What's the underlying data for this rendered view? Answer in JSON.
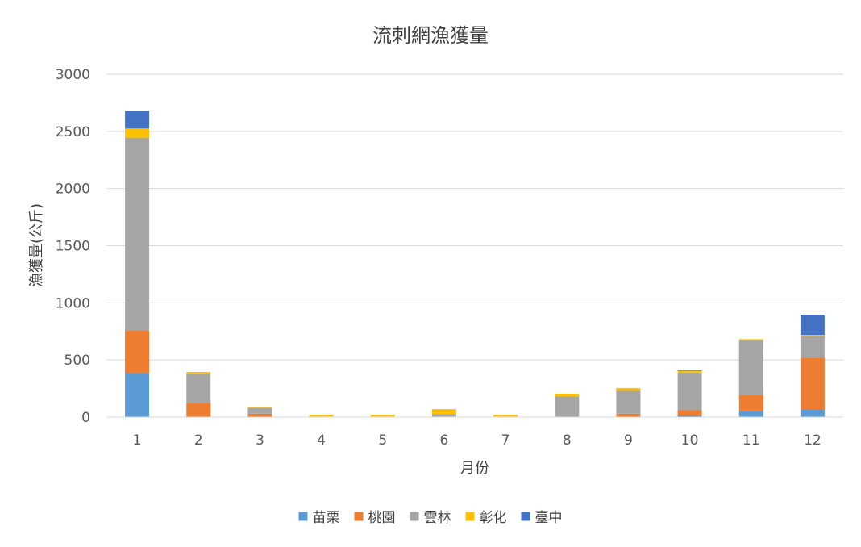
{
  "chart_data": {
    "type": "bar",
    "stacked": true,
    "title": "流刺網漁獲量",
    "xlabel": "月份",
    "ylabel": "漁獲量(公斤)",
    "ylim": [
      0,
      3000
    ],
    "yticks": [
      0,
      500,
      1000,
      1500,
      2000,
      2500,
      3000
    ],
    "grid": true,
    "legend_position": "bottom",
    "categories": [
      "1",
      "2",
      "3",
      "4",
      "5",
      "6",
      "7",
      "8",
      "9",
      "10",
      "11",
      "12"
    ],
    "series": [
      {
        "name": "苗栗",
        "color": "#5B9BD5",
        "values": [
          385,
          0,
          0,
          0,
          0,
          0,
          0,
          0,
          0,
          15,
          55,
          70
        ]
      },
      {
        "name": "桃園",
        "color": "#ED7D31",
        "values": [
          370,
          120,
          30,
          0,
          0,
          5,
          0,
          0,
          30,
          45,
          140,
          450
        ]
      },
      {
        "name": "雲林",
        "color": "#A5A5A5",
        "values": [
          1690,
          260,
          50,
          5,
          5,
          20,
          5,
          180,
          200,
          330,
          475,
          190
        ]
      },
      {
        "name": "彰化",
        "color": "#FFC000",
        "values": [
          80,
          15,
          10,
          15,
          15,
          45,
          15,
          25,
          25,
          15,
          12,
          10
        ]
      },
      {
        "name": "臺中",
        "color": "#4472C4",
        "values": [
          155,
          0,
          0,
          0,
          0,
          0,
          0,
          0,
          0,
          5,
          0,
          175
        ]
      }
    ]
  }
}
